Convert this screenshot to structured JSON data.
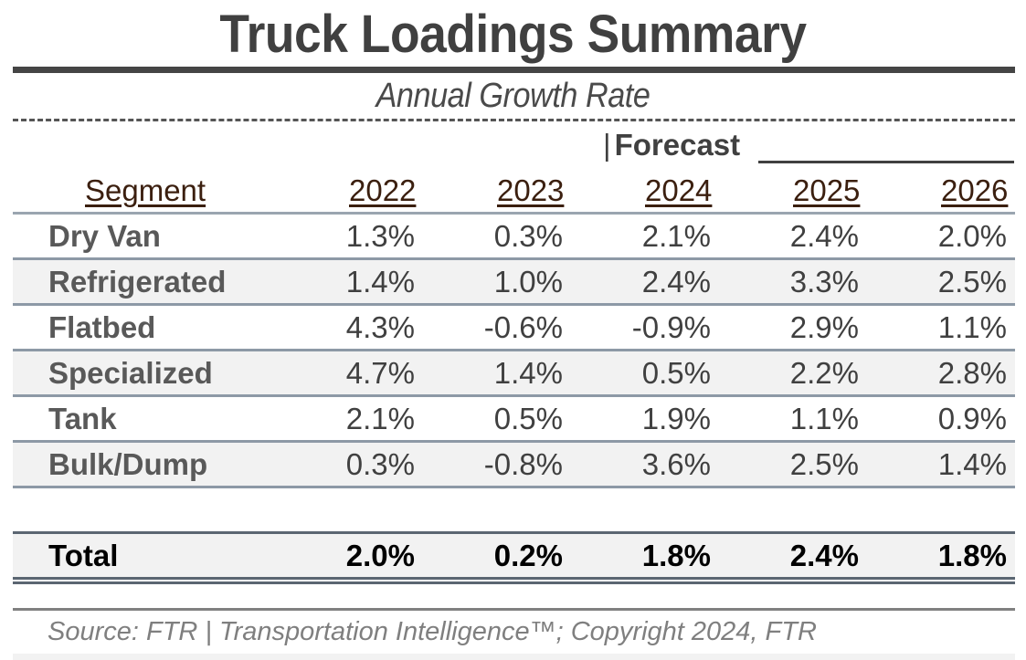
{
  "title": "Truck Loadings Summary",
  "subtitle": "Annual Growth Rate",
  "forecast_label": "Forecast",
  "forecast_separator": "|",
  "header": {
    "segment": "Segment",
    "years": [
      "2022",
      "2023",
      "2024",
      "2025",
      "2026"
    ]
  },
  "rows": [
    {
      "segment": "Dry Van",
      "values": [
        "1.3%",
        "0.3%",
        "2.1%",
        "2.4%",
        "2.0%"
      ]
    },
    {
      "segment": "Refrigerated",
      "values": [
        "1.4%",
        "1.0%",
        "2.4%",
        "3.3%",
        "2.5%"
      ]
    },
    {
      "segment": "Flatbed",
      "values": [
        "4.3%",
        "-0.6%",
        "-0.9%",
        "2.9%",
        "1.1%"
      ]
    },
    {
      "segment": "Specialized",
      "values": [
        "4.7%",
        "1.4%",
        "0.5%",
        "2.2%",
        "2.8%"
      ]
    },
    {
      "segment": "Tank",
      "values": [
        "2.1%",
        "0.5%",
        "1.9%",
        "1.1%",
        "0.9%"
      ]
    },
    {
      "segment": "Bulk/Dump",
      "values": [
        "0.3%",
        "-0.8%",
        "3.6%",
        "2.5%",
        "1.4%"
      ]
    }
  ],
  "total": {
    "label": "Total",
    "values": [
      "2.0%",
      "0.2%",
      "1.8%",
      "2.4%",
      "1.8%"
    ]
  },
  "source": "Source: FTR | Transportation Intelligence™; Copyright 2024, FTR",
  "colors": {
    "title": "#404040",
    "header_text": "#3b1f0f",
    "row_shade": "#f2f2f2",
    "row_separator": "#8d99a6",
    "total_border": "#5b6672"
  }
}
